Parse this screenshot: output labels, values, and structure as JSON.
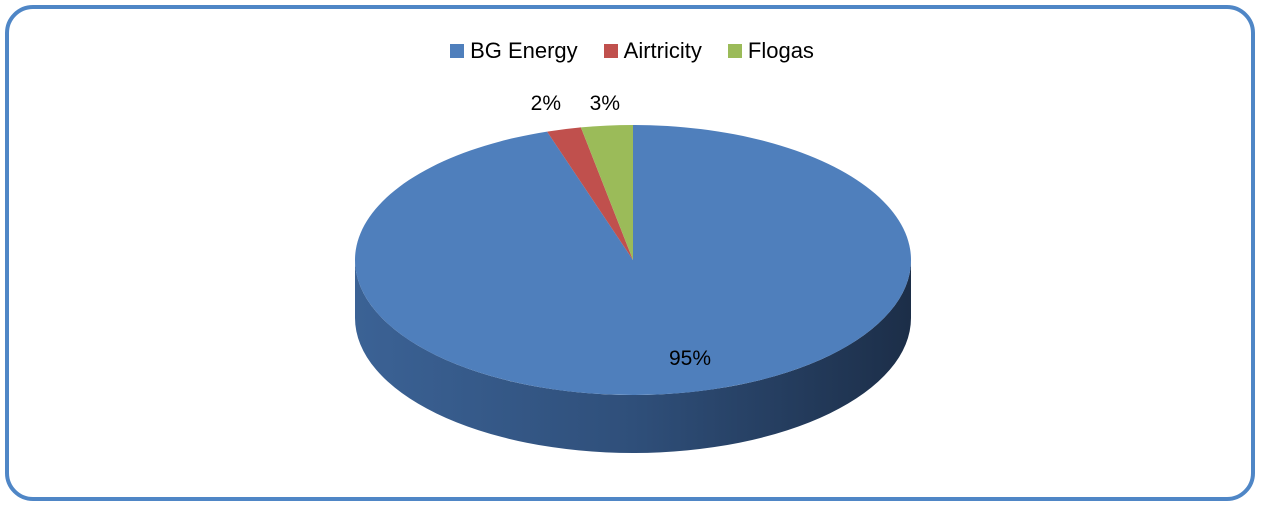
{
  "chart_data": {
    "type": "pie",
    "title": "",
    "legend_position": "top",
    "style": "3d",
    "slices": [
      {
        "label": "BG Energy",
        "value": 95,
        "display": "95%",
        "color": "#4f7fbc"
      },
      {
        "label": "Airtricity",
        "value": 2,
        "display": "2%",
        "color": "#c0504d"
      },
      {
        "label": "Flogas",
        "value": 3,
        "display": "3%",
        "color": "#9bbb59"
      }
    ]
  }
}
